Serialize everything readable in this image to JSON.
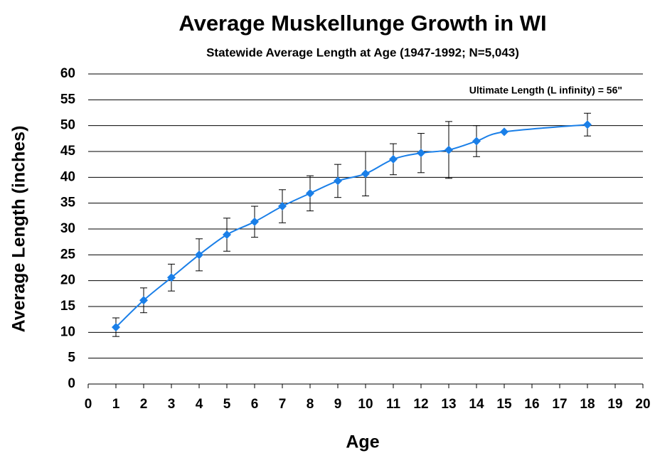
{
  "chart_data": {
    "type": "line",
    "title": "Average Muskellunge Growth in WI",
    "subtitle": "Statewide Average Length at Age (1947-1992; N=5,043)",
    "x_label": "Age",
    "y_label": "Average Length (inches)",
    "annotation": "Ultimate Length (L infinity) = 56\"",
    "x": [
      1,
      2,
      3,
      4,
      5,
      6,
      7,
      8,
      9,
      10,
      11,
      12,
      13,
      14,
      15,
      18
    ],
    "series": [
      {
        "color": "#1a7fe8",
        "values": [
          11.0,
          16.2,
          20.6,
          25.0,
          28.9,
          31.4,
          34.4,
          36.9,
          39.3,
          40.7,
          43.5,
          44.7,
          45.3,
          47.0,
          48.8,
          50.2
        ],
        "errors": [
          1.8,
          2.4,
          2.6,
          3.1,
          3.2,
          3.0,
          3.2,
          3.4,
          3.2,
          4.3,
          3.0,
          3.8,
          5.5,
          3.0,
          null,
          2.2
        ]
      }
    ],
    "xlim": [
      0,
      20
    ],
    "xticks": [
      0,
      1,
      2,
      3,
      4,
      5,
      6,
      7,
      8,
      9,
      10,
      11,
      12,
      13,
      14,
      15,
      16,
      17,
      18,
      19,
      20
    ],
    "ylim": [
      0,
      60
    ],
    "yticks": [
      0,
      5,
      10,
      15,
      20,
      25,
      30,
      35,
      40,
      45,
      50,
      55,
      60
    ],
    "grid": true
  }
}
